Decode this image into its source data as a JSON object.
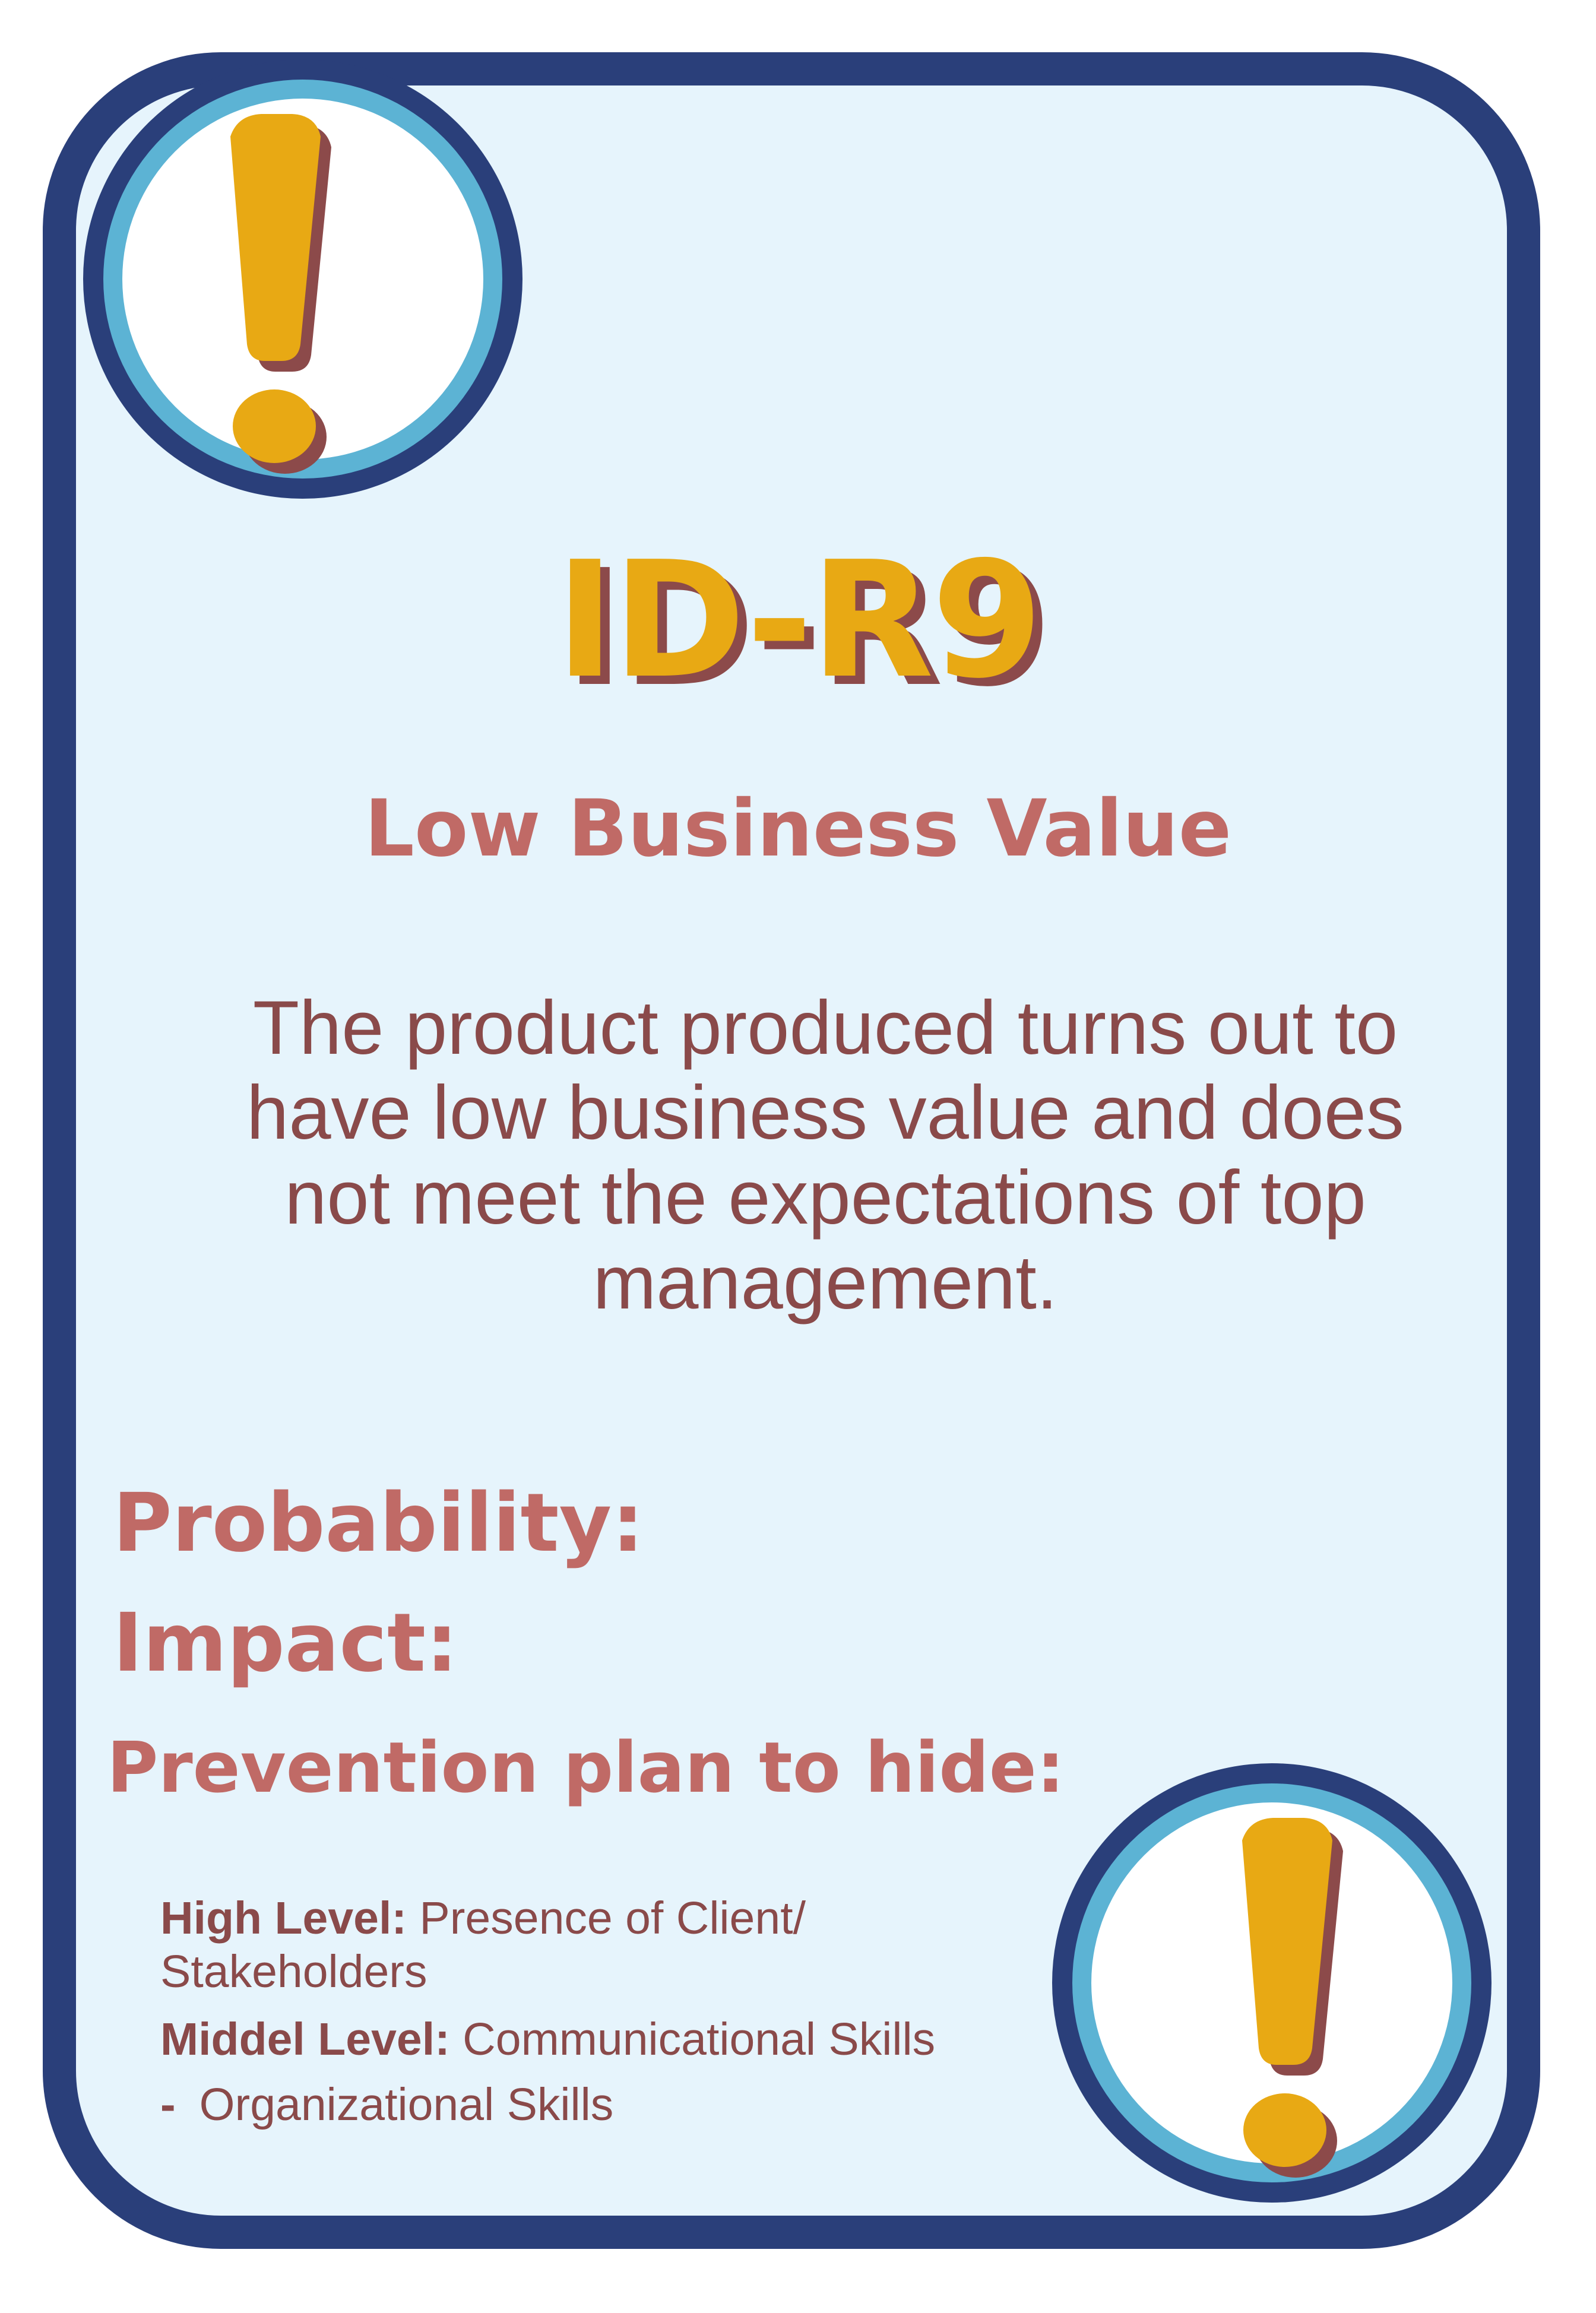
{
  "card": {
    "id": "ID-R9",
    "title": "Low Business Value",
    "description": "The product produced turns out to have low business value and does not meet the expectations of top management."
  },
  "fields": {
    "probability_label": "Probability:",
    "impact_label": "Impact:",
    "prevention_label": "Prevention plan to hide:"
  },
  "prevention_plan": {
    "high_label": "High Level:",
    "high_value": "Presence of Client/ Stakeholders",
    "middle_label": "Middel Level:",
    "middle_value": "Communicational Skills",
    "extra_bullet": "-",
    "extra_value": "Organizational Skills"
  },
  "icons": {
    "top_left": "exclamation-icon",
    "bottom_right": "exclamation-icon"
  },
  "colors": {
    "border_navy": "#2a3f7a",
    "ring_blue": "#5cb3d4",
    "card_background": "#e6f4fc",
    "accent_gold": "#e8a914",
    "shadow_brown": "#8c4a4a",
    "heading_rose": "#c06a66",
    "text_brown": "#8a4a4a"
  }
}
